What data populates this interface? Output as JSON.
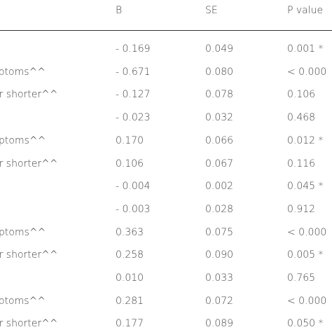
{
  "table": {
    "header": [
      "B",
      "SE",
      "P value"
    ],
    "rows": [
      {
        "b": "- 0.169",
        "se": "0.049",
        "p": "0.001 *"
      },
      {
        "label": "otoms^^",
        "b": "- 0.671",
        "se": "0.080",
        "p": "< 0.000"
      },
      {
        "label": "or shorter^^",
        "b": "- 0.127",
        "se": "0.078",
        "p": "0.106"
      },
      {
        "b": "- 0.023",
        "se": "0.032",
        "p": "0.468"
      },
      {
        "label": "ptoms^^",
        "b": "0.170",
        "se": "0.066",
        "p": "0.012 *"
      },
      {
        "label": "or shorter^^",
        "b": "0.106",
        "se": "0.067",
        "p": "0.116"
      },
      {
        "b": "- 0.004",
        "se": "0.002",
        "p": "0.045 *"
      },
      {
        "b": "- 0.003",
        "se": "0.028",
        "p": "0.912"
      },
      {
        "label": "ptoms^^",
        "b": "0.363",
        "se": "0.075",
        "p": "< 0.000"
      },
      {
        "label": "or shorter^^",
        "b": "0.258",
        "se": "0.090",
        "p": "0.005 *"
      },
      {
        "b": "0.010",
        "se": "0.033",
        "p": "0.765"
      },
      {
        "label": "otoms^^",
        "b": "0.281",
        "se": "0.072",
        "p": "< 0.000"
      },
      {
        "label": "or shorter^^",
        "b": "0.177",
        "se": "0.089",
        "p": "0.050 *"
      }
    ]
  }
}
